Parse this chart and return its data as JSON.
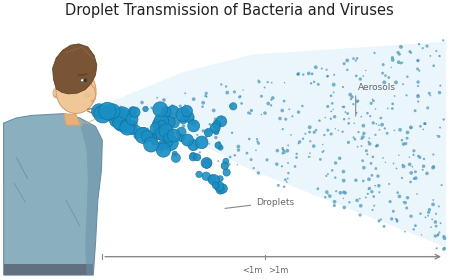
{
  "title": "Droplet Transmission of Bacteria and Viruses",
  "title_fontsize": 10.5,
  "background_color": "#ffffff",
  "droplet_color": "#1a8fc4",
  "droplet_edge_color": "#1070a0",
  "aerosol_dot_color": "#4a9abf",
  "aerosol_bg_color": "#daf0f8",
  "label_droplets": "Droplets",
  "label_aerosols": "Aerosols",
  "label_1m_left": "<1m",
  "label_1m_right": ">1m",
  "axis_line_color": "#888888",
  "label_color": "#666666",
  "face_color": "#f0c898",
  "face_shadow": "#d4a070",
  "hair_color": "#7a5535",
  "shirt_color": "#8ab0c0",
  "shirt_shadow": "#6a90a8",
  "shirt_dark": "#507080",
  "skin_neck": "#e8b078",
  "eye_color": "#333333",
  "lip_color": "#b07858"
}
